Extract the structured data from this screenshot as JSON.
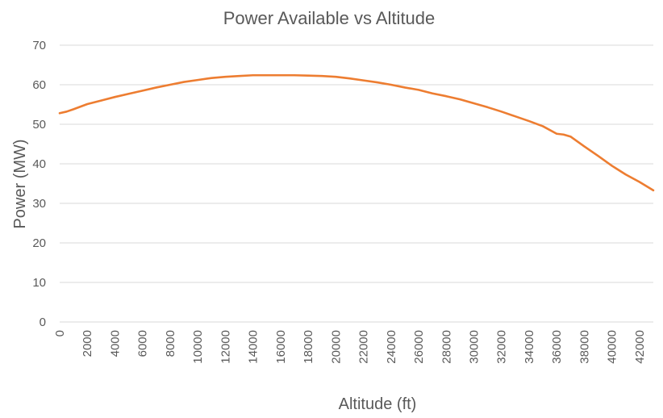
{
  "chart_data": {
    "type": "line",
    "title": "Power Available vs Altitude",
    "xlabel": "Altitude (ft)",
    "ylabel": "Power (MW)",
    "xlim": [
      0,
      43000
    ],
    "ylim": [
      0,
      70
    ],
    "x_ticks": [
      0,
      2000,
      4000,
      6000,
      8000,
      10000,
      12000,
      14000,
      16000,
      18000,
      20000,
      22000,
      24000,
      26000,
      28000,
      30000,
      32000,
      34000,
      36000,
      38000,
      40000,
      42000
    ],
    "y_ticks": [
      0,
      10,
      20,
      30,
      40,
      50,
      60,
      70
    ],
    "grid": true,
    "colors": {
      "series": "#ed7d31",
      "grid": "#d9d9d9",
      "text": "#595959"
    },
    "series": [
      {
        "x": [
          0,
          500,
          1000,
          2000,
          3000,
          4000,
          5000,
          6000,
          7000,
          8000,
          9000,
          10000,
          11000,
          12000,
          13000,
          14000,
          15000,
          16000,
          17000,
          18000,
          19000,
          20000,
          21000,
          22000,
          23000,
          24000,
          25000,
          26000,
          27000,
          28000,
          29000,
          30000,
          31000,
          32000,
          33000,
          34000,
          35000,
          36000,
          36500,
          37000,
          38000,
          39000,
          40000,
          41000,
          42000,
          43000
        ],
        "values": [
          52.8,
          53.2,
          53.8,
          55.1,
          56.0,
          56.9,
          57.7,
          58.5,
          59.3,
          60.0,
          60.7,
          61.2,
          61.7,
          62.0,
          62.2,
          62.4,
          62.4,
          62.4,
          62.4,
          62.3,
          62.2,
          62.0,
          61.6,
          61.1,
          60.6,
          60.0,
          59.3,
          58.7,
          57.8,
          57.1,
          56.3,
          55.3,
          54.3,
          53.2,
          52.0,
          50.8,
          49.5,
          47.6,
          47.4,
          46.9,
          44.4,
          42.0,
          39.5,
          37.3,
          35.4,
          33.3
        ]
      }
    ]
  }
}
